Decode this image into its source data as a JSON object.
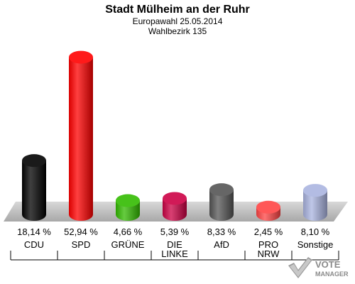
{
  "header": {
    "title": "Stadt Mülheim an der Ruhr",
    "subtitle": "Europawahl 25.05.2014",
    "district": "Wahlbezirk 135"
  },
  "logo": {
    "text_top": "VOTE",
    "text_bottom": "MANAGER",
    "icon": "vote-manager-logo"
  },
  "chart_data": {
    "type": "bar",
    "title": "Stadt Mülheim an der Ruhr",
    "categories": [
      "CDU",
      "SPD",
      "GRÜNE",
      "DIE LINKE",
      "AfD",
      "PRO NRW",
      "Sonstige"
    ],
    "category_lines": [
      [
        "CDU"
      ],
      [
        "SPD"
      ],
      [
        "GRÜNE"
      ],
      [
        "DIE",
        "LINKE"
      ],
      [
        "AfD"
      ],
      [
        "PRO",
        "NRW"
      ],
      [
        "Sonstige"
      ]
    ],
    "values": [
      18.14,
      52.94,
      4.66,
      5.39,
      8.33,
      2.45,
      8.1
    ],
    "value_labels": [
      "18,14 %",
      "52,94 %",
      "4,66 %",
      "5,39 %",
      "8,33 %",
      "2,45 %",
      "8,10 %"
    ],
    "colors": [
      "#000000",
      "#ff0000",
      "#33bb00",
      "#cc0044",
      "#555555",
      "#ff4444",
      "#aab4e0"
    ],
    "ylim": [
      0,
      55
    ],
    "grid": false
  }
}
